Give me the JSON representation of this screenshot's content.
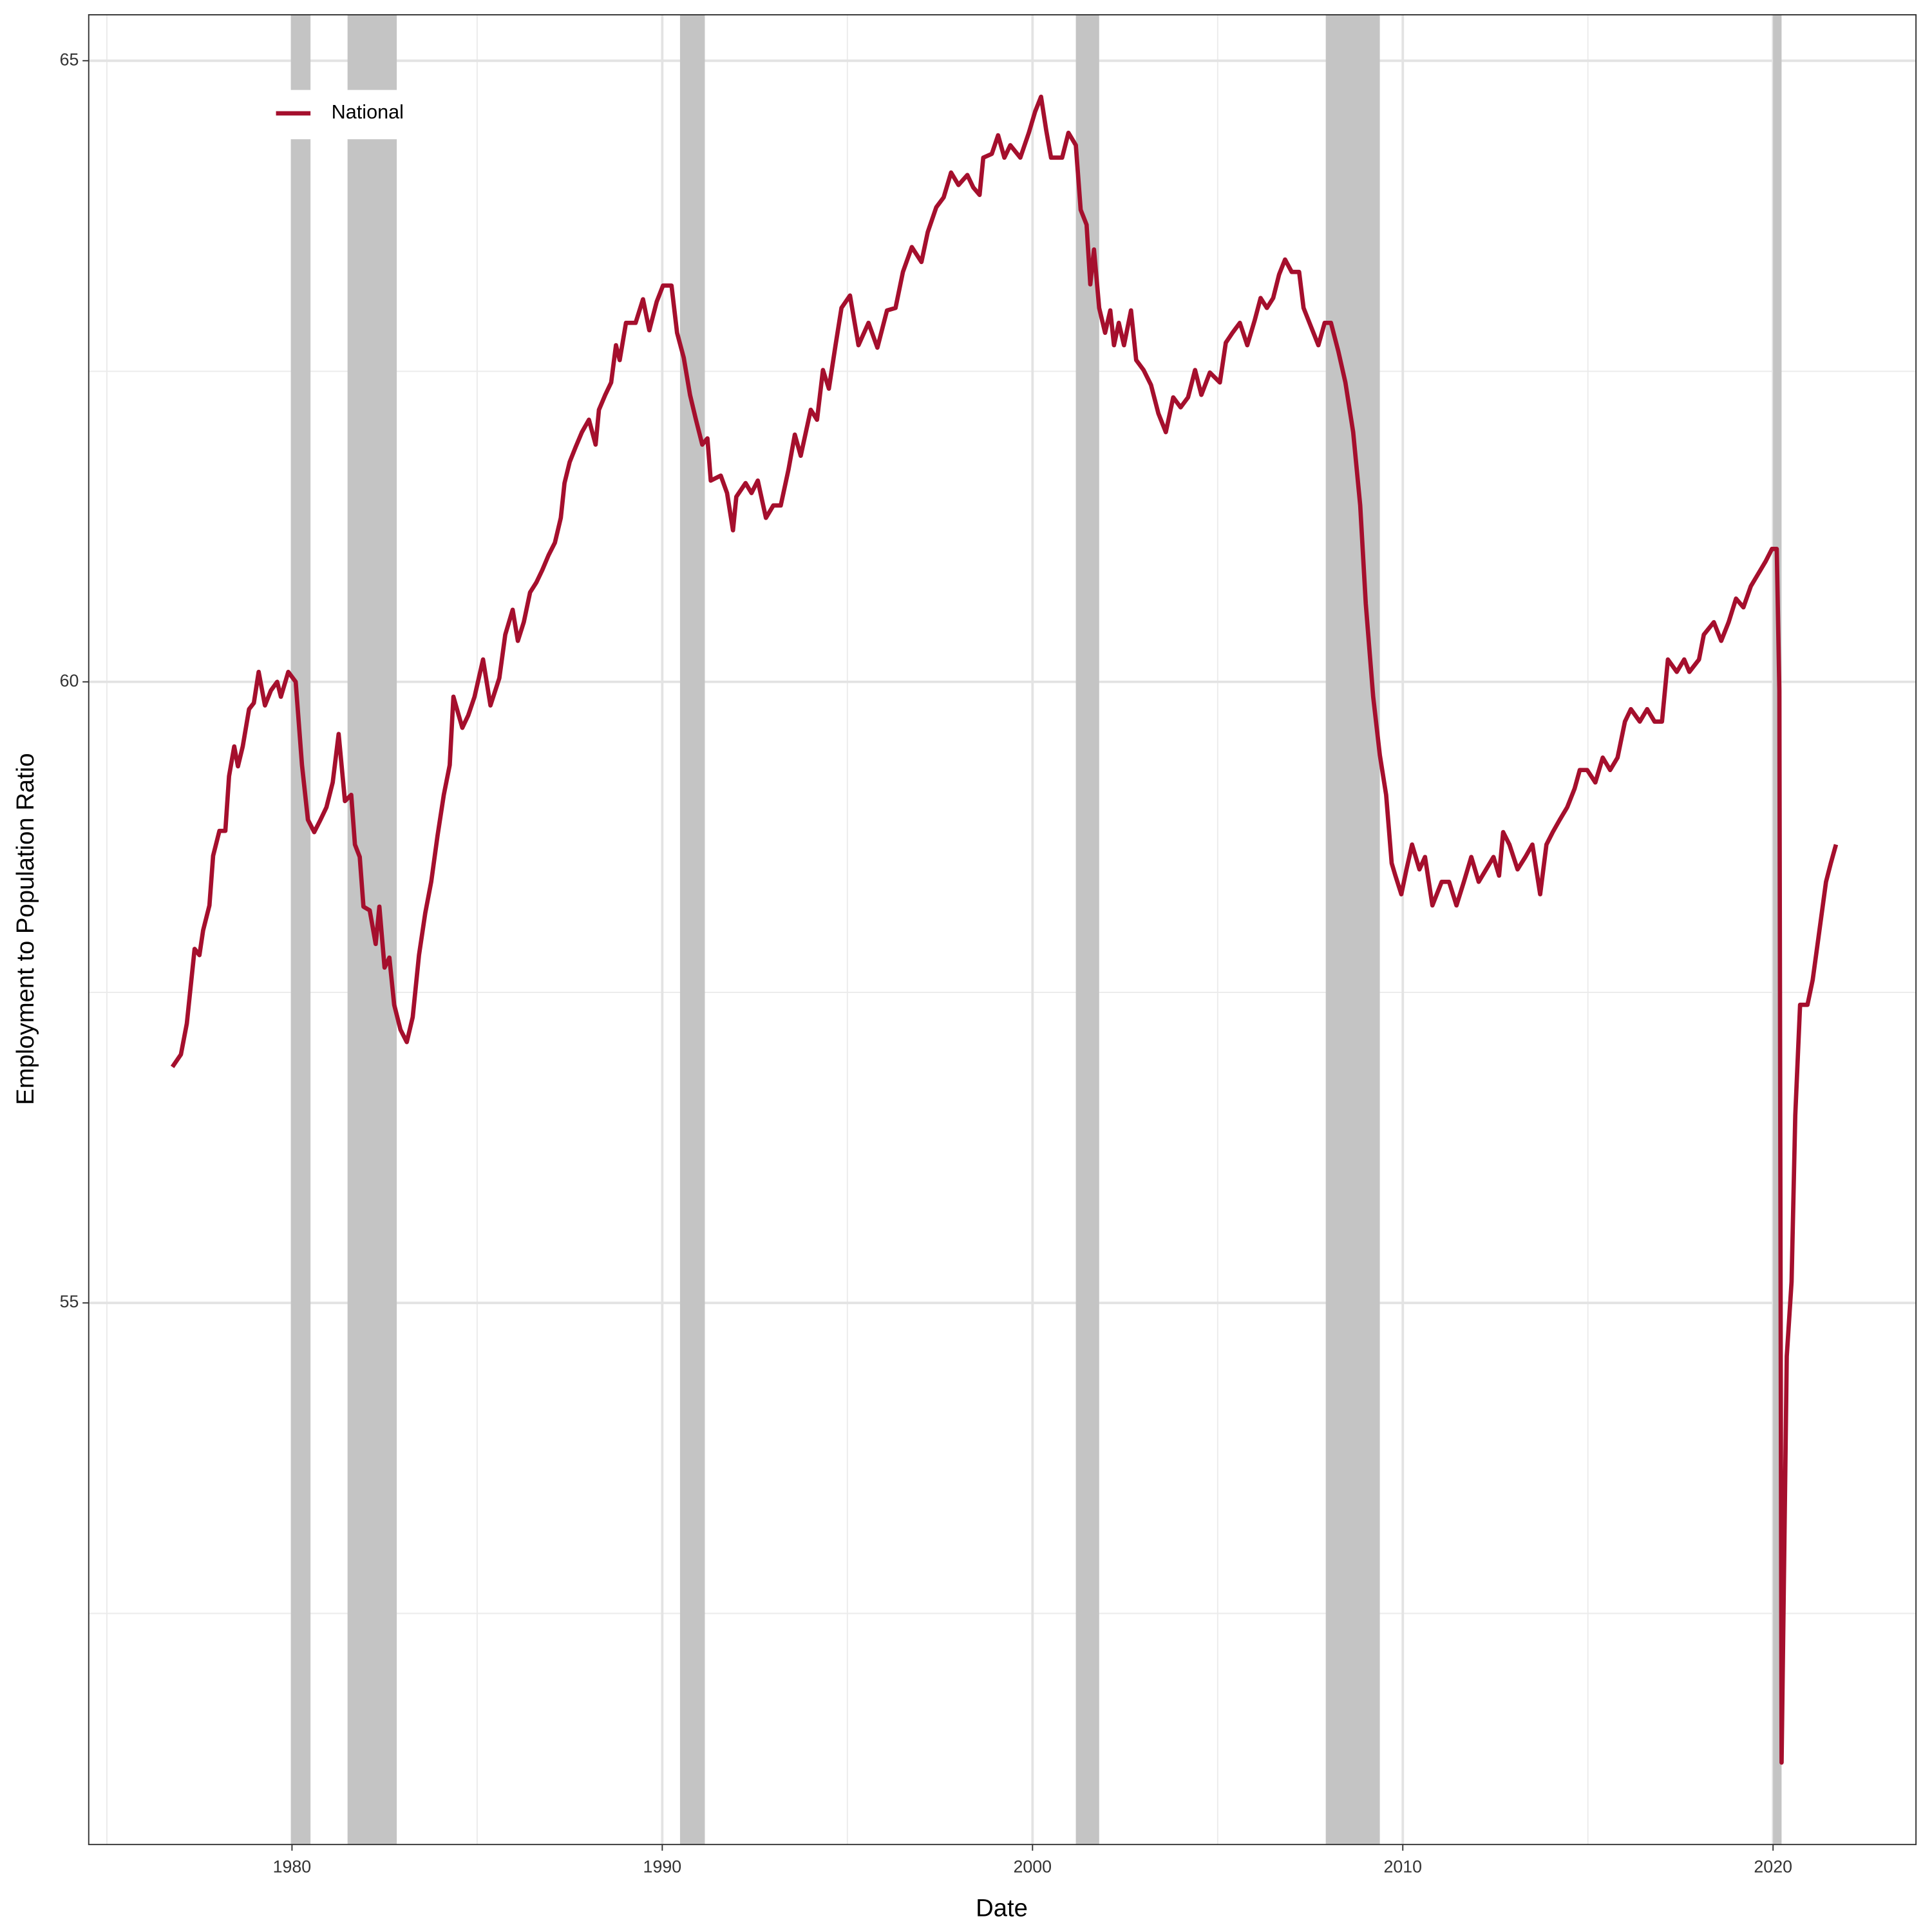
{
  "chart_data": {
    "type": "line",
    "xlabel": "Date",
    "ylabel": "Employment to Population Ratio",
    "xlim": [
      1974.51,
      2023.86
    ],
    "ylim": [
      50.64,
      65.37
    ],
    "xticks": [
      1980,
      1990,
      2000,
      2010,
      2020
    ],
    "yticks": [
      55,
      60,
      65
    ],
    "x_minor_grid": [
      1975,
      1985,
      1995,
      2005,
      2015
    ],
    "y_minor_grid": [
      52.5,
      57.5,
      62.5
    ],
    "grid": true,
    "legend": "top-left",
    "shade_color": "#c4c4c4",
    "recessions": [
      [
        1979.97,
        1980.5
      ],
      [
        1981.5,
        1982.83
      ],
      [
        1990.48,
        1991.15
      ],
      [
        2001.17,
        2001.8
      ],
      [
        2007.92,
        2009.38
      ],
      [
        2020.0,
        2020.23
      ]
    ],
    "x": [
      1976.77,
      1977.0,
      1977.16,
      1977.37,
      1977.5,
      1977.6,
      1977.77,
      1977.87,
      1978.04,
      1978.2,
      1978.3,
      1978.44,
      1978.54,
      1978.67,
      1978.84,
      1978.97,
      1979.1,
      1979.27,
      1979.43,
      1979.6,
      1979.7,
      1979.9,
      1980.1,
      1980.27,
      1980.43,
      1980.6,
      1980.77,
      1980.93,
      1981.1,
      1981.26,
      1981.43,
      1981.6,
      1981.7,
      1981.83,
      1981.93,
      1982.1,
      1982.26,
      1982.36,
      1982.5,
      1982.63,
      1982.76,
      1982.93,
      1983.1,
      1983.26,
      1983.43,
      1983.6,
      1983.76,
      1983.93,
      1984.1,
      1984.26,
      1984.36,
      1984.6,
      1984.76,
      1984.93,
      1985.16,
      1985.36,
      1985.6,
      1985.76,
      1985.96,
      1986.1,
      1986.26,
      1986.43,
      1986.6,
      1986.76,
      1986.93,
      1987.1,
      1987.26,
      1987.36,
      1987.5,
      1987.66,
      1987.83,
      1988.02,
      1988.2,
      1988.29,
      1988.46,
      1988.62,
      1988.75,
      1988.85,
      1989.02,
      1989.28,
      1989.48,
      1989.65,
      1989.85,
      1990.02,
      1990.25,
      1990.4,
      1990.58,
      1990.75,
      1990.91,
      1991.08,
      1991.22,
      1991.31,
      1991.58,
      1991.75,
      1991.91,
      1992.0,
      1992.25,
      1992.41,
      1992.58,
      1992.8,
      1993.0,
      1993.2,
      1993.41,
      1993.58,
      1993.74,
      1994.01,
      1994.18,
      1994.34,
      1994.5,
      1994.68,
      1994.84,
      1995.07,
      1995.3,
      1995.57,
      1995.81,
      1996.07,
      1996.3,
      1996.5,
      1996.74,
      1997.0,
      1997.17,
      1997.4,
      1997.6,
      1997.8,
      1998.0,
      1998.24,
      1998.4,
      1998.57,
      1998.67,
      1998.9,
      1999.07,
      1999.24,
      1999.4,
      1999.67,
      1999.9,
      2000.07,
      2000.23,
      2000.37,
      2000.5,
      2000.8,
      2000.97,
      2001.17,
      2001.3,
      2001.46,
      2001.56,
      2001.66,
      2001.8,
      2001.96,
      2002.1,
      2002.2,
      2002.33,
      2002.47,
      2002.66,
      2002.8,
      2003.0,
      2003.2,
      2003.4,
      2003.6,
      2003.8,
      2004.0,
      2004.2,
      2004.39,
      2004.56,
      2004.79,
      2005.06,
      2005.22,
      2005.4,
      2005.6,
      2005.8,
      2006.0,
      2006.16,
      2006.33,
      2006.5,
      2006.66,
      2006.82,
      2007.0,
      2007.2,
      2007.32,
      2007.52,
      2007.72,
      2007.89,
      2008.06,
      2008.26,
      2008.45,
      2008.66,
      2008.85,
      2009.0,
      2009.2,
      2009.38,
      2009.55,
      2009.7,
      2009.8,
      2009.96,
      2010.1,
      2010.25,
      2010.45,
      2010.6,
      2010.8,
      2011.05,
      2011.25,
      2011.45,
      2011.65,
      2011.85,
      2012.05,
      2012.25,
      2012.45,
      2012.6,
      2012.71,
      2012.88,
      2013.1,
      2013.31,
      2013.5,
      2013.71,
      2013.88,
      2014.05,
      2014.24,
      2014.44,
      2014.64,
      2014.78,
      2014.98,
      2015.2,
      2015.4,
      2015.6,
      2015.8,
      2016.0,
      2016.16,
      2016.4,
      2016.6,
      2016.8,
      2017.0,
      2017.16,
      2017.4,
      2017.6,
      2017.74,
      2018.0,
      2018.13,
      2018.4,
      2018.6,
      2018.8,
      2019.0,
      2019.2,
      2019.4,
      2019.6,
      2019.8,
      2019.97,
      2020.1,
      2020.17,
      2020.23,
      2020.37,
      2020.5,
      2020.6,
      2020.73,
      2020.93,
      2021.07,
      2021.23,
      2021.43,
      2021.56,
      2021.7
    ],
    "series": [
      {
        "name": "National",
        "color": "#a50f2d",
        "values": [
          56.9,
          57.0,
          57.25,
          57.85,
          57.8,
          58.0,
          58.2,
          58.6,
          58.8,
          58.8,
          59.24,
          59.48,
          59.32,
          59.48,
          59.78,
          59.83,
          60.08,
          59.81,
          59.93,
          60.0,
          59.88,
          60.08,
          60.0,
          59.33,
          58.89,
          58.79,
          58.89,
          58.99,
          59.19,
          59.58,
          59.04,
          59.09,
          58.69,
          58.59,
          58.19,
          58.16,
          57.89,
          58.19,
          57.7,
          57.78,
          57.4,
          57.2,
          57.1,
          57.3,
          57.8,
          58.14,
          58.39,
          58.76,
          59.09,
          59.33,
          59.88,
          59.63,
          59.73,
          59.88,
          60.18,
          59.81,
          60.03,
          60.38,
          60.58,
          60.33,
          60.48,
          60.72,
          60.8,
          60.9,
          61.02,
          61.12,
          61.32,
          61.6,
          61.77,
          61.89,
          62.01,
          62.11,
          61.91,
          62.19,
          62.31,
          62.41,
          62.71,
          62.59,
          62.89,
          62.89,
          63.08,
          62.83,
          63.06,
          63.19,
          63.19,
          62.81,
          62.61,
          62.31,
          62.11,
          61.91,
          61.96,
          61.62,
          61.66,
          61.52,
          61.22,
          61.49,
          61.6,
          61.52,
          61.62,
          61.32,
          61.42,
          61.42,
          61.71,
          61.99,
          61.82,
          62.19,
          62.11,
          62.51,
          62.36,
          62.71,
          63.01,
          63.11,
          62.71,
          62.89,
          62.69,
          62.99,
          63.01,
          63.3,
          63.5,
          63.38,
          63.62,
          63.82,
          63.9,
          64.1,
          64.0,
          64.08,
          63.98,
          63.92,
          64.22,
          64.25,
          64.4,
          64.22,
          64.32,
          64.22,
          64.42,
          64.59,
          64.71,
          64.44,
          64.22,
          64.22,
          64.42,
          64.32,
          63.8,
          63.68,
          63.2,
          63.48,
          63.01,
          62.81,
          62.99,
          62.71,
          62.89,
          62.71,
          62.99,
          62.59,
          62.51,
          62.39,
          62.16,
          62.01,
          62.29,
          62.21,
          62.29,
          62.51,
          62.31,
          62.49,
          62.41,
          62.73,
          62.81,
          62.89,
          62.71,
          62.91,
          63.09,
          63.01,
          63.09,
          63.28,
          63.4,
          63.3,
          63.3,
          63.01,
          62.86,
          62.71,
          62.89,
          62.89,
          62.66,
          62.41,
          62.01,
          61.42,
          60.63,
          59.88,
          59.41,
          59.09,
          58.54,
          58.44,
          58.29,
          58.49,
          58.69,
          58.49,
          58.59,
          58.2,
          58.39,
          58.39,
          58.2,
          58.39,
          58.59,
          58.39,
          58.49,
          58.59,
          58.44,
          58.79,
          58.69,
          58.49,
          58.59,
          58.69,
          58.29,
          58.69,
          58.79,
          58.89,
          58.99,
          59.14,
          59.29,
          59.29,
          59.19,
          59.39,
          59.29,
          59.39,
          59.68,
          59.78,
          59.68,
          59.78,
          59.68,
          59.68,
          60.18,
          60.08,
          60.18,
          60.08,
          60.18,
          60.38,
          60.48,
          60.33,
          60.48,
          60.67,
          60.6,
          60.77,
          60.87,
          60.97,
          61.07,
          61.07,
          59.93,
          51.3,
          54.57,
          55.17,
          56.51,
          57.4,
          57.4,
          57.6,
          57.95,
          58.39,
          58.54,
          58.69
        ]
      }
    ]
  }
}
